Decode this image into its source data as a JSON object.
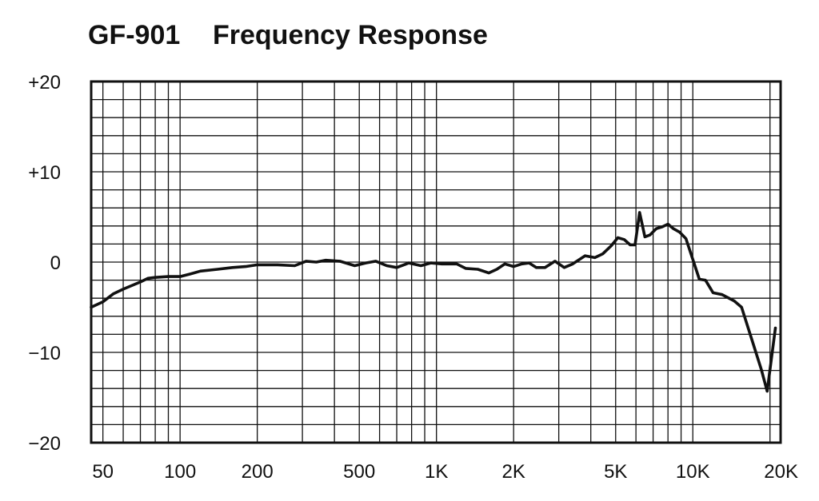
{
  "chart_data": {
    "type": "line",
    "title_parts": [
      "GF-901",
      "Frequency Response"
    ],
    "xlabel": "",
    "ylabel": "",
    "x_scale": "log",
    "xlim": [
      45,
      22000
    ],
    "ylim": [
      -20,
      20
    ],
    "grid": true,
    "legend": "none",
    "x_ticks": [
      {
        "value": 50,
        "label": "50"
      },
      {
        "value": 100,
        "label": "100"
      },
      {
        "value": 200,
        "label": "200"
      },
      {
        "value": 500,
        "label": "500"
      },
      {
        "value": 1000,
        "label": "1K"
      },
      {
        "value": 2000,
        "label": "2K"
      },
      {
        "value": 5000,
        "label": "5K"
      },
      {
        "value": 10000,
        "label": "10K"
      },
      {
        "value": 20000,
        "label": "20K"
      }
    ],
    "y_ticks": [
      {
        "value": 20,
        "label": "+20"
      },
      {
        "value": 10,
        "label": "+10"
      },
      {
        "value": 0,
        "label": "0"
      },
      {
        "value": -10,
        "label": "−10"
      },
      {
        "value": -20,
        "label": "−20"
      }
    ],
    "x_gridlines": [
      50,
      60,
      70,
      80,
      90,
      100,
      200,
      300,
      400,
      500,
      600,
      700,
      800,
      900,
      1000,
      2000,
      3000,
      4000,
      5000,
      6000,
      7000,
      8000,
      9000,
      10000,
      20000
    ],
    "y_gridlines": [
      -18,
      -16,
      -14,
      -12,
      -10,
      -8,
      -6,
      -4,
      -2,
      0,
      2,
      4,
      6,
      8,
      10,
      12,
      14,
      16,
      18
    ],
    "series": [
      {
        "color": "#111111",
        "points": [
          [
            45,
            -5.0
          ],
          [
            50,
            -4.4
          ],
          [
            55,
            -3.5
          ],
          [
            60,
            -3.0
          ],
          [
            70,
            -2.2
          ],
          [
            75,
            -1.8
          ],
          [
            80,
            -1.7
          ],
          [
            90,
            -1.6
          ],
          [
            100,
            -1.6
          ],
          [
            110,
            -1.3
          ],
          [
            120,
            -1.0
          ],
          [
            140,
            -0.8
          ],
          [
            160,
            -0.6
          ],
          [
            180,
            -0.5
          ],
          [
            200,
            -0.3
          ],
          [
            240,
            -0.3
          ],
          [
            280,
            -0.4
          ],
          [
            310,
            0.1
          ],
          [
            340,
            0.0
          ],
          [
            370,
            0.2
          ],
          [
            420,
            0.1
          ],
          [
            480,
            -0.4
          ],
          [
            530,
            -0.1
          ],
          [
            580,
            0.1
          ],
          [
            640,
            -0.4
          ],
          [
            700,
            -0.6
          ],
          [
            780,
            -0.1
          ],
          [
            870,
            -0.4
          ],
          [
            950,
            -0.1
          ],
          [
            1050,
            -0.2
          ],
          [
            1200,
            -0.2
          ],
          [
            1300,
            -0.7
          ],
          [
            1450,
            -0.8
          ],
          [
            1600,
            -1.2
          ],
          [
            1720,
            -0.8
          ],
          [
            1850,
            -0.2
          ],
          [
            2000,
            -0.5
          ],
          [
            2150,
            -0.2
          ],
          [
            2300,
            -0.1
          ],
          [
            2450,
            -0.6
          ],
          [
            2650,
            -0.6
          ],
          [
            2900,
            0.1
          ],
          [
            3150,
            -0.6
          ],
          [
            3400,
            -0.2
          ],
          [
            3800,
            0.7
          ],
          [
            4150,
            0.5
          ],
          [
            4450,
            0.9
          ],
          [
            4800,
            1.8
          ],
          [
            5100,
            2.7
          ],
          [
            5400,
            2.5
          ],
          [
            5700,
            1.9
          ],
          [
            5950,
            1.9
          ],
          [
            6200,
            5.5
          ],
          [
            6500,
            2.8
          ],
          [
            6800,
            3.0
          ],
          [
            7200,
            3.7
          ],
          [
            7600,
            3.9
          ],
          [
            8000,
            4.2
          ],
          [
            8400,
            3.7
          ],
          [
            8900,
            3.3
          ],
          [
            9400,
            2.6
          ],
          [
            10000,
            0.3
          ],
          [
            10600,
            -1.9
          ],
          [
            11200,
            -2.0
          ],
          [
            12000,
            -3.4
          ],
          [
            13000,
            -3.6
          ],
          [
            14500,
            -4.3
          ],
          [
            15500,
            -5.0
          ],
          [
            17000,
            -8.6
          ],
          [
            18500,
            -11.9
          ],
          [
            19500,
            -14.3
          ],
          [
            21000,
            -7.3
          ]
        ]
      }
    ]
  }
}
